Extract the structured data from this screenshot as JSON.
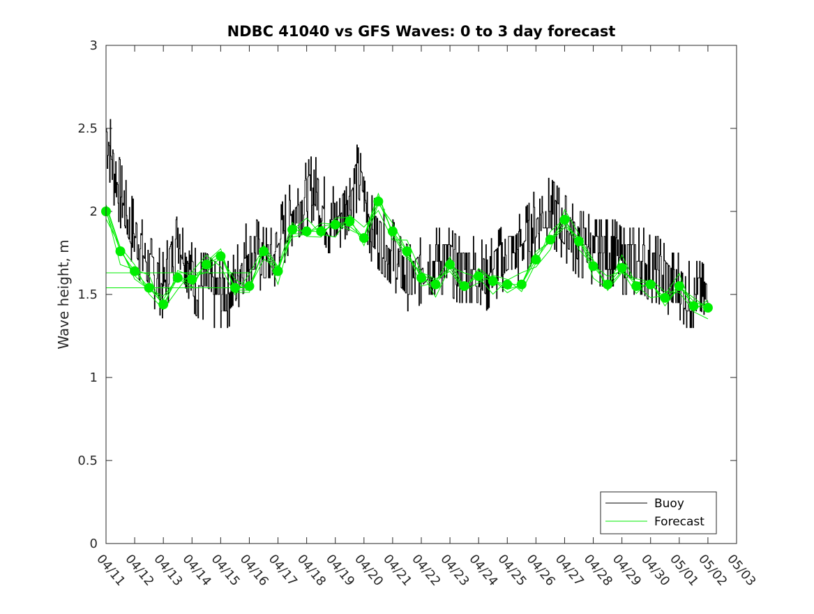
{
  "chart_data": {
    "type": "line",
    "title": "NDBC 41040 vs GFS Waves: 0 to 3 day forecast",
    "xlabel": "",
    "ylabel": "Wave height, m",
    "ylim": [
      0,
      3
    ],
    "yticks": [
      "0",
      "0.5",
      "1",
      "1.5",
      "2",
      "2.5",
      "3"
    ],
    "xlim": [
      0,
      22
    ],
    "xticks": [
      "04/11",
      "04/12",
      "04/13",
      "04/14",
      "04/15",
      "04/16",
      "04/17",
      "04/18",
      "04/19",
      "04/20",
      "04/21",
      "04/22",
      "04/23",
      "04/24",
      "04/25",
      "04/26",
      "04/27",
      "04/28",
      "04/29",
      "04/30",
      "05/01",
      "05/02",
      "05/03"
    ],
    "grid": false,
    "legend_position": "bottom-right",
    "colors": {
      "buoy": "#000000",
      "forecast": "#00ee00"
    },
    "series": [
      {
        "name": "Buoy",
        "x": [
          0,
          0.25,
          0.5,
          0.75,
          1,
          1.25,
          1.5,
          1.75,
          2,
          2.25,
          2.5,
          2.75,
          3,
          3.25,
          3.5,
          3.75,
          4,
          4.25,
          4.5,
          4.75,
          5,
          5.25,
          5.5,
          5.75,
          6,
          6.25,
          6.5,
          6.75,
          7,
          7.25,
          7.5,
          7.75,
          8,
          8.25,
          8.5,
          8.75,
          9,
          9.25,
          9.5,
          9.75,
          10,
          10.25,
          10.5,
          10.75,
          11,
          11.25,
          11.5,
          11.75,
          12,
          12.25,
          12.5,
          12.75,
          13,
          13.25,
          13.5,
          13.75,
          14,
          14.25,
          14.5,
          14.75,
          15,
          15.25,
          15.5,
          15.75,
          16,
          16.25,
          16.5,
          16.75,
          17,
          17.25,
          17.5,
          17.75,
          18,
          18.25,
          18.5,
          18.75,
          19,
          19.25,
          19.5,
          19.75,
          20,
          20.25,
          20.5,
          20.75,
          21
        ],
        "values": [
          2.5,
          2.25,
          2.1,
          1.95,
          1.85,
          1.75,
          1.65,
          1.6,
          1.55,
          1.7,
          1.9,
          1.75,
          1.6,
          1.55,
          1.55,
          1.5,
          1.5,
          1.5,
          1.55,
          1.7,
          1.75,
          1.75,
          1.7,
          1.7,
          1.8,
          1.9,
          2.0,
          2.05,
          2.1,
          2.15,
          2.05,
          1.95,
          1.95,
          2.0,
          2.1,
          2.2,
          2.1,
          1.9,
          1.85,
          1.8,
          1.75,
          1.65,
          1.6,
          1.6,
          1.65,
          1.7,
          1.7,
          1.7,
          1.7,
          1.65,
          1.65,
          1.65,
          1.65,
          1.6,
          1.65,
          1.7,
          1.75,
          1.75,
          1.8,
          1.85,
          1.95,
          2.0,
          2.0,
          1.95,
          1.9,
          1.85,
          1.8,
          1.8,
          1.75,
          1.75,
          1.75,
          1.75,
          1.7,
          1.7,
          1.7,
          1.7,
          1.65,
          1.65,
          1.6,
          1.55,
          1.55,
          1.5,
          1.5,
          1.5,
          1.45
        ]
      },
      {
        "name": "Forecast",
        "x": [
          0,
          0.5,
          1,
          1.5,
          2,
          2.5,
          3,
          3.5,
          4,
          4.5,
          5,
          5.5,
          6,
          6.5,
          7,
          7.5,
          8,
          8.5,
          9,
          9.5,
          10,
          10.5,
          11,
          11.5,
          12,
          12.5,
          13,
          13.5,
          14,
          14.5,
          15,
          15.5,
          16,
          16.5,
          17,
          17.5,
          18,
          18.5,
          19,
          19.5,
          20,
          20.5,
          21
        ],
        "values": [
          2.0,
          1.76,
          1.64,
          1.54,
          1.44,
          1.6,
          1.59,
          1.68,
          1.73,
          1.54,
          1.55,
          1.76,
          1.64,
          1.89,
          1.88,
          1.88,
          1.92,
          1.94,
          1.84,
          2.06,
          1.88,
          1.76,
          1.6,
          1.56,
          1.68,
          1.55,
          1.61,
          1.58,
          1.56,
          1.56,
          1.71,
          1.83,
          1.95,
          1.82,
          1.67,
          1.56,
          1.66,
          1.55,
          1.56,
          1.48,
          1.55,
          1.43,
          1.42
        ]
      }
    ]
  }
}
